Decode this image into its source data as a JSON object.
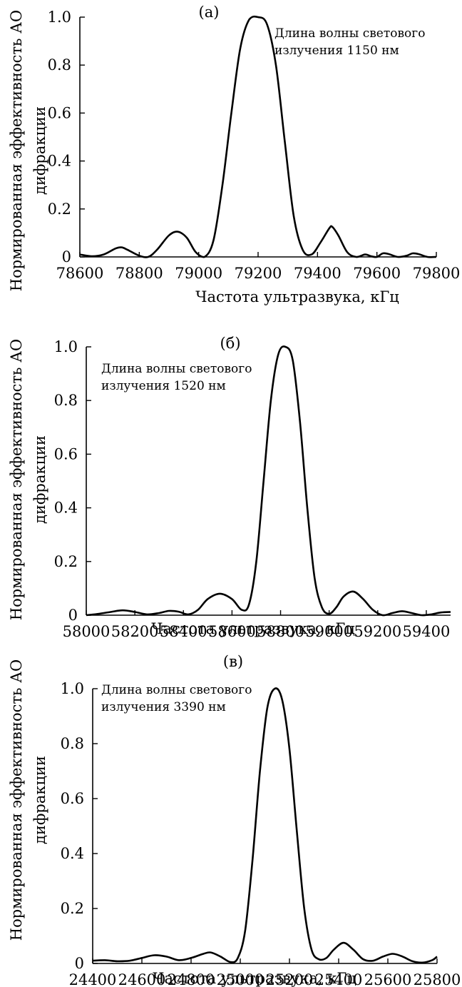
{
  "chart_data": [
    {
      "type": "line",
      "panel_label": "(а)",
      "annotation": [
        "Длина волны светового",
        "излучения 1150 нм"
      ],
      "xlabel": "Частота ультразвука, кГц",
      "ylabel": [
        "Нормированная эффективность АО",
        "дифракции"
      ],
      "xlim": [
        78600,
        79800
      ],
      "ylim": [
        0,
        1.0
      ],
      "xticks": [
        78600,
        78800,
        79000,
        79200,
        79400,
        79600,
        79800
      ],
      "yticks": [
        0,
        0.2,
        0.4,
        0.6,
        0.8,
        1.0
      ],
      "ytick_labels": [
        "0",
        "0.2",
        "0.4",
        "0.6",
        "0.8",
        "1.0"
      ],
      "grid": false,
      "series": [
        {
          "x": [
            78600,
            78640,
            78680,
            78720,
            78740,
            78760,
            78800,
            78830,
            78860,
            78900,
            78930,
            78960,
            78990,
            79020,
            79050,
            79080,
            79110,
            79140,
            79170,
            79200,
            79230,
            79260,
            79290,
            79320,
            79350,
            79380,
            79410,
            79440,
            79450,
            79470,
            79500,
            79530,
            79560,
            79580,
            79600,
            79620,
            79640,
            79670,
            79700,
            79720,
            79740,
            79770,
            79800
          ],
          "y": [
            0.01,
            0.003,
            0.01,
            0.035,
            0.04,
            0.03,
            0.005,
            0.0,
            0.03,
            0.09,
            0.105,
            0.08,
            0.02,
            0.0,
            0.07,
            0.3,
            0.6,
            0.87,
            0.99,
            1.0,
            0.97,
            0.8,
            0.48,
            0.17,
            0.03,
            0.01,
            0.06,
            0.12,
            0.125,
            0.09,
            0.02,
            0.0,
            0.01,
            0.003,
            0.0,
            0.015,
            0.012,
            0.0,
            0.005,
            0.015,
            0.012,
            0.0,
            0.0
          ]
        }
      ]
    },
    {
      "type": "line",
      "panel_label": "(б)",
      "annotation": [
        "Длина волны светового",
        "излучения 1520 нм"
      ],
      "xlabel": "Частота ультразвука, кГц",
      "ylabel": [
        "Нормированная эффективность АО",
        "дифракции"
      ],
      "xlim": [
        58000,
        59500
      ],
      "ylim": [
        0,
        1.0
      ],
      "xticks": [
        58000,
        58200,
        58400,
        58600,
        58800,
        59000,
        59200,
        59400
      ],
      "yticks": [
        0,
        0.2,
        0.4,
        0.6,
        0.8,
        1.0
      ],
      "ytick_labels": [
        "0",
        "0.2",
        "0.4",
        "0.6",
        "0.8",
        "1.0"
      ],
      "grid": false,
      "series": [
        {
          "x": [
            58000,
            58050,
            58100,
            58150,
            58200,
            58250,
            58300,
            58340,
            58380,
            58420,
            58460,
            58500,
            58550,
            58600,
            58640,
            58670,
            58700,
            58730,
            58760,
            58790,
            58820,
            58850,
            58880,
            58910,
            58940,
            58970,
            59000,
            59030,
            59060,
            59100,
            59140,
            59180,
            59220,
            59260,
            59300,
            59340,
            59380,
            59420,
            59460,
            59500
          ],
          "y": [
            0.0,
            0.005,
            0.012,
            0.018,
            0.012,
            0.003,
            0.008,
            0.016,
            0.013,
            0.003,
            0.02,
            0.06,
            0.08,
            0.06,
            0.02,
            0.04,
            0.2,
            0.5,
            0.8,
            0.97,
            1.0,
            0.95,
            0.72,
            0.4,
            0.14,
            0.03,
            0.005,
            0.03,
            0.07,
            0.088,
            0.06,
            0.02,
            0.0,
            0.008,
            0.015,
            0.008,
            0.0,
            0.003,
            0.01,
            0.012
          ]
        }
      ]
    },
    {
      "type": "line",
      "panel_label": "(в)",
      "annotation": [
        "Длина волны светового",
        "излучения 3390 нм"
      ],
      "xlabel": "Частота ультразвука, кГц",
      "ylabel": [
        "Нормированная эффективность АО",
        "дифракции"
      ],
      "xlim": [
        24400,
        25800
      ],
      "ylim": [
        0,
        1.0
      ],
      "xticks": [
        24400,
        24600,
        24800,
        25000,
        25200,
        25400,
        25600,
        25800
      ],
      "yticks": [
        0,
        0.2,
        0.4,
        0.6,
        0.8,
        1.0
      ],
      "ytick_labels": [
        "0",
        "0.2",
        "0.4",
        "0.6",
        "0.8",
        "1.0"
      ],
      "grid": false,
      "series": [
        {
          "x": [
            24400,
            24450,
            24500,
            24550,
            24600,
            24650,
            24700,
            24750,
            24800,
            24850,
            24880,
            24920,
            24960,
            24990,
            25020,
            25050,
            25080,
            25110,
            25140,
            25170,
            25200,
            25230,
            25260,
            25290,
            25320,
            25350,
            25380,
            25420,
            25460,
            25500,
            25540,
            25580,
            25620,
            25660,
            25700,
            25740,
            25780,
            25800
          ],
          "y": [
            0.01,
            0.012,
            0.008,
            0.01,
            0.02,
            0.03,
            0.025,
            0.012,
            0.02,
            0.035,
            0.04,
            0.025,
            0.005,
            0.02,
            0.12,
            0.38,
            0.7,
            0.93,
            1.0,
            0.96,
            0.78,
            0.48,
            0.2,
            0.05,
            0.015,
            0.02,
            0.05,
            0.075,
            0.05,
            0.015,
            0.01,
            0.025,
            0.035,
            0.025,
            0.008,
            0.003,
            0.012,
            0.025
          ]
        }
      ]
    }
  ]
}
